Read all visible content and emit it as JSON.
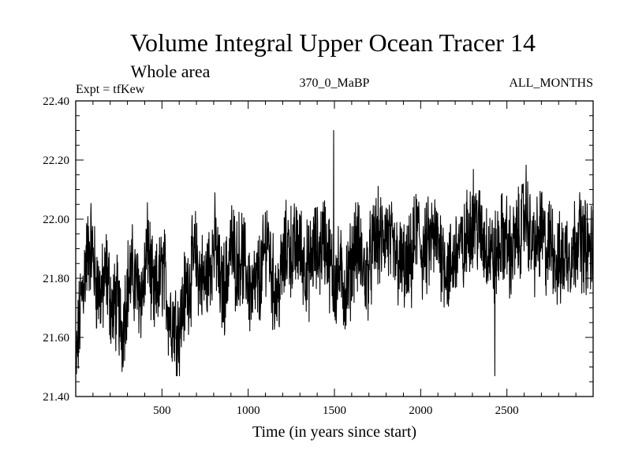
{
  "header": {
    "title": "Volume Integral Upper Ocean Tracer 14",
    "subtitle": "Whole area",
    "expt": "Expt = tfKew",
    "center_label": "370_0_MaBP",
    "right_label": "ALL_MONTHS"
  },
  "chart_data": {
    "type": "line",
    "title": "Volume Integral Upper Ocean Tracer 14",
    "subtitle": "Whole area",
    "xlabel": "Time (in years since start)",
    "ylabel": "",
    "xlim": [
      0,
      3000
    ],
    "ylim": [
      21.4,
      22.4
    ],
    "x_ticks": [
      500,
      1000,
      1500,
      2000,
      2500
    ],
    "y_ticks": [
      "21.40",
      "21.60",
      "21.80",
      "22.00",
      "22.20",
      "22.40"
    ],
    "grid": false,
    "legend": "none",
    "line_color": "#000000",
    "series": [
      {
        "x_start": 0,
        "x_step": 30,
        "values": [
          21.48,
          21.72,
          21.86,
          21.92,
          21.78,
          21.74,
          21.82,
          21.69,
          21.72,
          21.62,
          21.78,
          21.82,
          21.76,
          21.75,
          21.92,
          21.72,
          21.78,
          21.84,
          21.68,
          21.66,
          21.62,
          21.74,
          21.79,
          21.88,
          21.81,
          21.78,
          21.86,
          21.92,
          21.76,
          21.78,
          21.92,
          21.85,
          21.88,
          21.82,
          21.74,
          21.78,
          21.82,
          21.96,
          21.79,
          21.74,
          21.84,
          21.92,
          21.88,
          21.92,
          21.86,
          21.82,
          21.9,
          21.88,
          21.95,
          21.86,
          21.78,
          21.82,
          21.76,
          21.82,
          21.92,
          21.88,
          21.8,
          21.86,
          21.94,
          21.92,
          21.96,
          21.9,
          21.86,
          21.84,
          21.82,
          21.86,
          21.98,
          21.88,
          21.9,
          21.94,
          21.92,
          21.88,
          21.82,
          21.86,
          21.92,
          21.88,
          21.98,
          22.02,
          21.96,
          21.92,
          21.9,
          21.86,
          21.92,
          21.94,
          21.88,
          21.92,
          21.96,
          22.04,
          21.92,
          21.9,
          21.96,
          21.88,
          21.94,
          21.84,
          21.86,
          21.9,
          21.88,
          21.96,
          21.92,
          21.9
        ]
      }
    ],
    "annotations": {
      "max": {
        "x": 1495,
        "y": 22.3
      },
      "min": {
        "x": 2430,
        "y": 21.47
      }
    }
  }
}
